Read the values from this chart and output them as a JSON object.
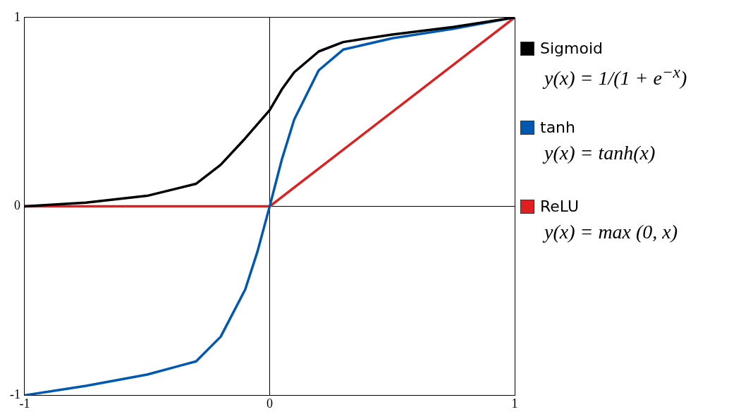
{
  "chart_data": {
    "type": "line",
    "xlim": [
      -1,
      1
    ],
    "ylim": [
      -1,
      1
    ],
    "xticks": [
      -1,
      0,
      1
    ],
    "yticks": [
      -1,
      0,
      1
    ],
    "grid": true,
    "legend": "right",
    "marker": "none",
    "line_style": "solid",
    "annotations": [
      "y(x) = 1/(1 + e$^{−x}$)",
      "y(x) = tanh(x)",
      "y(x) = max (0, x)"
    ],
    "series": [
      {
        "name": "Sigmoid",
        "color": "#000000",
        "x": [
          -1,
          -0.75,
          -0.5,
          -0.3,
          -0.2,
          -0.1,
          0,
          0.05,
          0.1,
          0.2,
          0.3,
          0.5,
          0.75,
          1
        ],
        "values": [
          0,
          0.02,
          0.056,
          0.12,
          0.22,
          0.36,
          0.51,
          0.62,
          0.71,
          0.82,
          0.87,
          0.91,
          0.95,
          1
        ]
      },
      {
        "name": "tanh",
        "color": "#0058b0",
        "x": [
          -1,
          -0.75,
          -0.5,
          -0.3,
          -0.2,
          -0.1,
          -0.05,
          0,
          0.05,
          0.1,
          0.2,
          0.3,
          0.5,
          0.75,
          1
        ],
        "values": [
          -1,
          -0.95,
          -0.89,
          -0.82,
          -0.69,
          -0.44,
          -0.24,
          0,
          0.25,
          0.46,
          0.72,
          0.83,
          0.89,
          0.94,
          1
        ]
      },
      {
        "name": "ReLU",
        "color": "#e02020",
        "x": [
          -1,
          0,
          1
        ],
        "values": [
          0,
          0,
          1
        ]
      }
    ]
  }
}
